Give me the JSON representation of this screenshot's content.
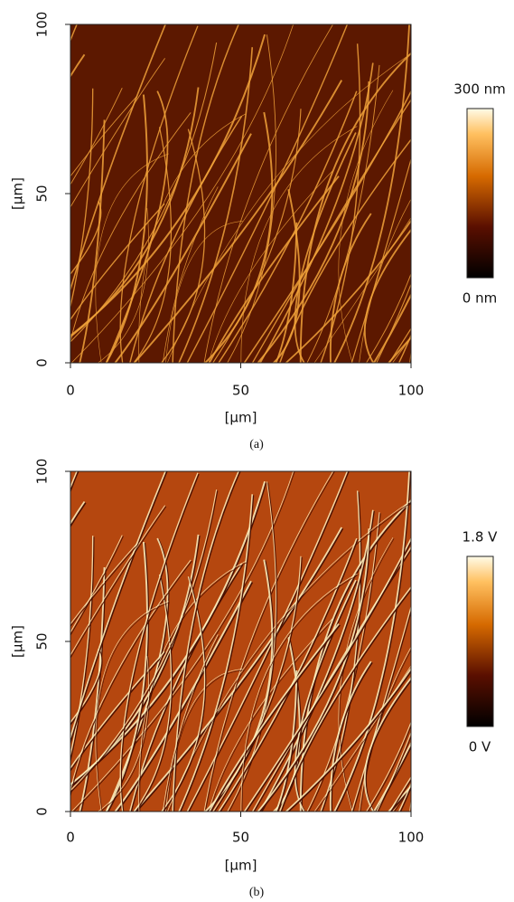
{
  "panels": [
    {
      "caption": "(a)",
      "x_label": "[µm]",
      "y_label": "[µm]",
      "xlim": [
        0,
        100
      ],
      "ylim": [
        0,
        100
      ],
      "xticks": [
        0,
        50,
        100
      ],
      "yticks": [
        0,
        50,
        100
      ],
      "colorbar": {
        "max_label": "300 nm",
        "min_label": "0 nm"
      }
    },
    {
      "caption": "(b)",
      "x_label": "[µm]",
      "y_label": "[µm]",
      "xlim": [
        0,
        100
      ],
      "ylim": [
        0,
        100
      ],
      "xticks": [
        0,
        50,
        100
      ],
      "yticks": [
        0,
        50,
        100
      ],
      "colorbar": {
        "max_label": "1.8 V",
        "min_label": "0 V"
      }
    }
  ]
}
